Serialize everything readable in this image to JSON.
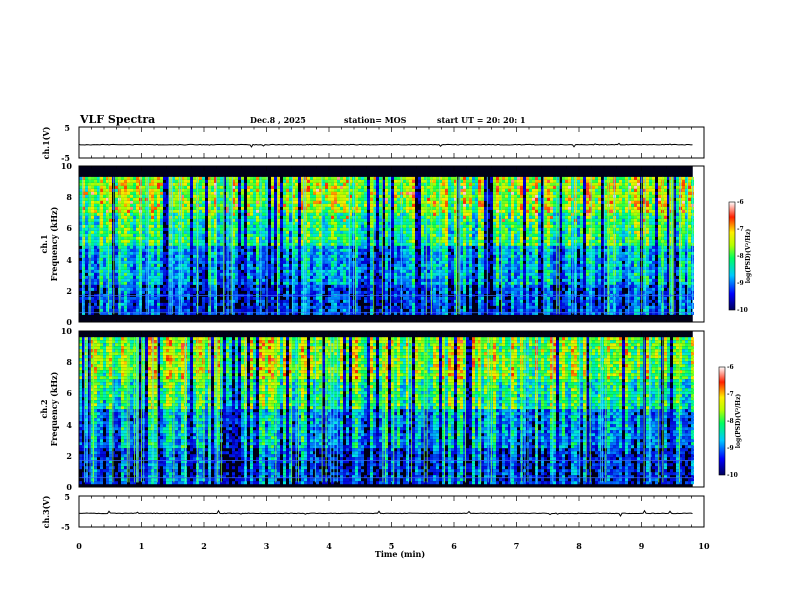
{
  "header": {
    "title": "VLF Spectra",
    "date": "Dec.8 , 2025",
    "station": "station= MOS",
    "start_ut": "start UT =  20: 20: 1"
  },
  "chart_data": {
    "type": "heatmap",
    "title": "VLF Spectra",
    "xlabel": "Time (min)",
    "xlim": [
      0,
      10
    ],
    "x_ticks": [
      "0",
      "1",
      "2",
      "3",
      "4",
      "5",
      "6",
      "7",
      "8",
      "9",
      "10"
    ],
    "waveforms": [
      {
        "name": "ch1",
        "ylabel": "ch.1(V)",
        "ylim": [
          -5,
          5
        ],
        "y_ticks": [
          "5",
          "-5"
        ],
        "level": -0.7
      },
      {
        "name": "ch3",
        "ylabel": "ch.3(V)",
        "ylim": [
          -5,
          5
        ],
        "y_ticks": [
          "5",
          "-5"
        ],
        "level": -0.6
      }
    ],
    "spectrograms": [
      {
        "name": "ch1",
        "ylabel_top": "ch.1",
        "ylabel": "Frequency (kHz)",
        "ylim": [
          0,
          10
        ],
        "y_ticks": [
          "0",
          "2",
          "4",
          "6",
          "8",
          "10"
        ],
        "data_end_min": 9.82,
        "band_khz": [
          0.5,
          9.3
        ],
        "colorbar": {
          "label": "log(PSD)(V²/Hz)",
          "range": [
            -10,
            -6
          ],
          "ticks": [
            "-6",
            "-7",
            "-8",
            "-9",
            "-10"
          ]
        }
      },
      {
        "name": "ch2",
        "ylabel_top": "ch.2",
        "ylabel": "Frequency (kHz)",
        "ylim": [
          0,
          10
        ],
        "y_ticks": [
          "0",
          "2",
          "4",
          "6",
          "8",
          "10"
        ],
        "data_end_min": 9.82,
        "band_khz": [
          0.3,
          9.6
        ],
        "colorbar": {
          "label": "log(PSD)(V²/Hz)",
          "range": [
            -10,
            -6
          ],
          "ticks": [
            "-6",
            "-7",
            "-8",
            "-9",
            "-10"
          ]
        }
      }
    ]
  }
}
